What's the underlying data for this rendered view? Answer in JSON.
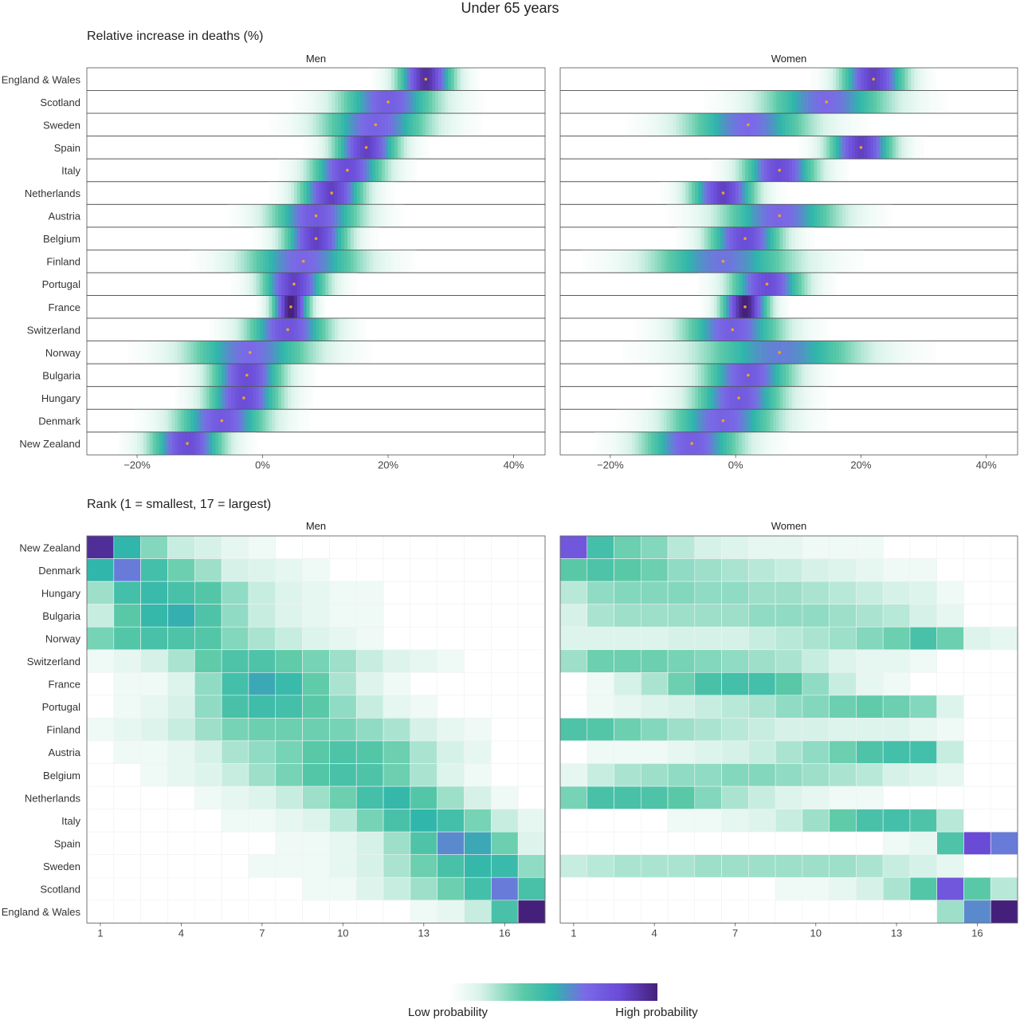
{
  "title": "Under 65 years",
  "top_section_title": "Relative increase in deaths (%)",
  "bottom_section_title": "Rank (1 = smallest, 17 = largest)",
  "legend": {
    "low_label": "Low probability",
    "high_label": "High probability",
    "colors": [
      "#ffffff",
      "#d6f2e8",
      "#5ccaa7",
      "#2fb5ab",
      "#7a6ae6",
      "#6a4bd6",
      "#44207a"
    ]
  },
  "chart_data": [
    {
      "type": "heatmap",
      "subtype": "density-strip",
      "panel": "Men",
      "xlim": [
        -28,
        45
      ],
      "xticks": [
        -20,
        0,
        20,
        40
      ],
      "xtick_labels": [
        "−20%",
        "0%",
        "20%",
        "40%"
      ],
      "point_color": "#f0a030",
      "rows": [
        {
          "country": "England & Wales",
          "estimate": 26,
          "sd": 3
        },
        {
          "country": "Scotland",
          "estimate": 20,
          "sd": 5.5
        },
        {
          "country": "Sweden",
          "estimate": 18,
          "sd": 6
        },
        {
          "country": "Spain",
          "estimate": 16.5,
          "sd": 3.5
        },
        {
          "country": "Italy",
          "estimate": 13.5,
          "sd": 4
        },
        {
          "country": "Netherlands",
          "estimate": 11,
          "sd": 3.5
        },
        {
          "country": "Austria",
          "estimate": 8.5,
          "sd": 5
        },
        {
          "country": "Belgium",
          "estimate": 8.5,
          "sd": 3.5
        },
        {
          "country": "Finland",
          "estimate": 6.5,
          "sd": 6.5
        },
        {
          "country": "Portugal",
          "estimate": 5,
          "sd": 3.5
        },
        {
          "country": "France",
          "estimate": 4.5,
          "sd": 2
        },
        {
          "country": "Switzerland",
          "estimate": 4,
          "sd": 4.5
        },
        {
          "country": "Norway",
          "estimate": -2,
          "sd": 7
        },
        {
          "country": "Bulgaria",
          "estimate": -2.5,
          "sd": 4
        },
        {
          "country": "Hungary",
          "estimate": -3,
          "sd": 4
        },
        {
          "country": "Denmark",
          "estimate": -6.5,
          "sd": 5
        },
        {
          "country": "New Zealand",
          "estimate": -12,
          "sd": 4
        }
      ]
    },
    {
      "type": "heatmap",
      "subtype": "density-strip",
      "panel": "Women",
      "xlim": [
        -28,
        45
      ],
      "xticks": [
        -20,
        0,
        20,
        40
      ],
      "xtick_labels": [
        "−20%",
        "0%",
        "20%",
        "40%"
      ],
      "point_color": "#f0a030",
      "rows": [
        {
          "country": "England & Wales",
          "estimate": 22,
          "sd": 3.5
        },
        {
          "country": "Scotland",
          "estimate": 14.5,
          "sd": 7
        },
        {
          "country": "Sweden",
          "estimate": 2,
          "sd": 7
        },
        {
          "country": "Spain",
          "estimate": 20,
          "sd": 3.5
        },
        {
          "country": "Italy",
          "estimate": 7,
          "sd": 4
        },
        {
          "country": "Netherlands",
          "estimate": -2,
          "sd": 3.5
        },
        {
          "country": "Austria",
          "estimate": 7,
          "sd": 6.5
        },
        {
          "country": "Belgium",
          "estimate": 1.5,
          "sd": 4
        },
        {
          "country": "Finland",
          "estimate": -2,
          "sd": 8
        },
        {
          "country": "Portugal",
          "estimate": 5,
          "sd": 4
        },
        {
          "country": "France",
          "estimate": 1.5,
          "sd": 2.5
        },
        {
          "country": "Switzerland",
          "estimate": -0.5,
          "sd": 5.5
        },
        {
          "country": "Norway",
          "estimate": 7,
          "sd": 9
        },
        {
          "country": "Bulgaria",
          "estimate": 2,
          "sd": 5
        },
        {
          "country": "Hungary",
          "estimate": 0.5,
          "sd": 5
        },
        {
          "country": "Denmark",
          "estimate": -2,
          "sd": 6
        },
        {
          "country": "New Zealand",
          "estimate": -7,
          "sd": 5.5
        }
      ]
    },
    {
      "type": "heatmap",
      "panel": "Men",
      "x_categories": [
        1,
        2,
        3,
        4,
        5,
        6,
        7,
        8,
        9,
        10,
        11,
        12,
        13,
        14,
        15,
        16,
        17
      ],
      "xticks": [
        1,
        4,
        7,
        10,
        13,
        16
      ],
      "rows": [
        {
          "country": "New Zealand",
          "values": [
            0.55,
            0.22,
            0.1,
            0.05,
            0.04,
            0.02,
            0.01,
            0,
            0,
            0,
            0,
            0,
            0,
            0,
            0,
            0,
            0
          ]
        },
        {
          "country": "Denmark",
          "values": [
            0.22,
            0.3,
            0.18,
            0.12,
            0.08,
            0.04,
            0.03,
            0.02,
            0.01,
            0,
            0,
            0,
            0,
            0,
            0,
            0,
            0
          ]
        },
        {
          "country": "Hungary",
          "values": [
            0.08,
            0.18,
            0.2,
            0.17,
            0.15,
            0.09,
            0.05,
            0.03,
            0.02,
            0.01,
            0.01,
            0,
            0,
            0,
            0,
            0,
            0
          ]
        },
        {
          "country": "Bulgaria",
          "values": [
            0.05,
            0.14,
            0.21,
            0.23,
            0.16,
            0.09,
            0.05,
            0.03,
            0.02,
            0.01,
            0.01,
            0,
            0,
            0,
            0,
            0,
            0
          ]
        },
        {
          "country": "Norway",
          "values": [
            0.11,
            0.15,
            0.17,
            0.16,
            0.15,
            0.1,
            0.07,
            0.05,
            0.03,
            0.02,
            0.01,
            0,
            0,
            0,
            0,
            0,
            0
          ]
        },
        {
          "country": "Switzerland",
          "values": [
            0.01,
            0.02,
            0.04,
            0.07,
            0.13,
            0.16,
            0.16,
            0.13,
            0.11,
            0.08,
            0.05,
            0.03,
            0.02,
            0.01,
            0,
            0,
            0
          ]
        },
        {
          "country": "France",
          "values": [
            0,
            0.01,
            0.01,
            0.03,
            0.09,
            0.18,
            0.24,
            0.2,
            0.13,
            0.07,
            0.03,
            0.01,
            0,
            0,
            0,
            0,
            0
          ]
        },
        {
          "country": "Portugal",
          "values": [
            0,
            0.01,
            0.02,
            0.04,
            0.09,
            0.17,
            0.19,
            0.18,
            0.14,
            0.09,
            0.05,
            0.02,
            0.01,
            0,
            0,
            0,
            0
          ]
        },
        {
          "country": "Finland",
          "values": [
            0.01,
            0.02,
            0.03,
            0.05,
            0.08,
            0.11,
            0.12,
            0.12,
            0.12,
            0.11,
            0.09,
            0.07,
            0.04,
            0.02,
            0.01,
            0,
            0
          ]
        },
        {
          "country": "Austria",
          "values": [
            0,
            0.01,
            0.01,
            0.02,
            0.04,
            0.07,
            0.09,
            0.11,
            0.14,
            0.16,
            0.15,
            0.12,
            0.07,
            0.04,
            0.02,
            0,
            0
          ]
        },
        {
          "country": "Belgium",
          "values": [
            0,
            0,
            0.01,
            0.02,
            0.03,
            0.05,
            0.08,
            0.11,
            0.15,
            0.17,
            0.16,
            0.12,
            0.07,
            0.03,
            0.01,
            0,
            0
          ]
        },
        {
          "country": "Netherlands",
          "values": [
            0,
            0,
            0,
            0,
            0.01,
            0.02,
            0.03,
            0.05,
            0.08,
            0.12,
            0.18,
            0.21,
            0.15,
            0.08,
            0.04,
            0.01,
            0
          ]
        },
        {
          "country": "Italy",
          "values": [
            0,
            0,
            0,
            0,
            0,
            0.01,
            0.01,
            0.02,
            0.03,
            0.06,
            0.11,
            0.17,
            0.22,
            0.18,
            0.11,
            0.05,
            0.02
          ]
        },
        {
          "country": "Spain",
          "values": [
            0,
            0,
            0,
            0,
            0,
            0,
            0,
            0.01,
            0.01,
            0.02,
            0.04,
            0.08,
            0.16,
            0.28,
            0.24,
            0.12,
            0.03
          ]
        },
        {
          "country": "Sweden",
          "values": [
            0,
            0,
            0,
            0,
            0,
            0,
            0.01,
            0.01,
            0.01,
            0.02,
            0.04,
            0.07,
            0.12,
            0.17,
            0.21,
            0.2,
            0.09
          ]
        },
        {
          "country": "Scotland",
          "values": [
            0,
            0,
            0,
            0,
            0,
            0,
            0,
            0,
            0.01,
            0.01,
            0.03,
            0.05,
            0.08,
            0.12,
            0.18,
            0.3,
            0.17
          ]
        },
        {
          "country": "England & Wales",
          "values": [
            0,
            0,
            0,
            0,
            0,
            0,
            0,
            0,
            0,
            0,
            0,
            0,
            0.01,
            0.02,
            0.05,
            0.17,
            0.6
          ]
        }
      ]
    },
    {
      "type": "heatmap",
      "panel": "Women",
      "x_categories": [
        1,
        2,
        3,
        4,
        5,
        6,
        7,
        8,
        9,
        10,
        11,
        12,
        13,
        14,
        15,
        16,
        17
      ],
      "xticks": [
        1,
        4,
        7,
        10,
        13,
        16
      ],
      "rows": [
        {
          "country": "New Zealand",
          "values": [
            0.4,
            0.18,
            0.12,
            0.1,
            0.06,
            0.04,
            0.03,
            0.02,
            0.02,
            0.01,
            0.01,
            0.01,
            0,
            0,
            0,
            0,
            0
          ]
        },
        {
          "country": "Denmark",
          "values": [
            0.14,
            0.16,
            0.14,
            0.12,
            0.09,
            0.08,
            0.07,
            0.06,
            0.05,
            0.04,
            0.03,
            0.02,
            0.01,
            0.01,
            0,
            0,
            0
          ]
        },
        {
          "country": "Hungary",
          "values": [
            0.06,
            0.09,
            0.1,
            0.1,
            0.1,
            0.09,
            0.09,
            0.08,
            0.08,
            0.07,
            0.06,
            0.05,
            0.04,
            0.03,
            0.01,
            0,
            0
          ]
        },
        {
          "country": "Bulgaria",
          "values": [
            0.04,
            0.07,
            0.08,
            0.08,
            0.08,
            0.08,
            0.08,
            0.09,
            0.09,
            0.09,
            0.08,
            0.07,
            0.06,
            0.04,
            0.02,
            0,
            0
          ]
        },
        {
          "country": "Norway",
          "values": [
            0.03,
            0.03,
            0.03,
            0.03,
            0.04,
            0.04,
            0.04,
            0.05,
            0.06,
            0.07,
            0.08,
            0.1,
            0.12,
            0.17,
            0.12,
            0.03,
            0.02
          ]
        },
        {
          "country": "Switzerland",
          "values": [
            0.08,
            0.12,
            0.12,
            0.12,
            0.11,
            0.1,
            0.09,
            0.08,
            0.07,
            0.05,
            0.03,
            0.02,
            0.02,
            0.01,
            0,
            0,
            0
          ]
        },
        {
          "country": "France",
          "values": [
            0,
            0.01,
            0.04,
            0.07,
            0.12,
            0.17,
            0.18,
            0.18,
            0.14,
            0.09,
            0.05,
            0.02,
            0.01,
            0,
            0,
            0,
            0
          ]
        },
        {
          "country": "Portugal",
          "values": [
            0,
            0.01,
            0.02,
            0.03,
            0.04,
            0.05,
            0.06,
            0.07,
            0.09,
            0.1,
            0.12,
            0.13,
            0.12,
            0.1,
            0.03,
            0,
            0
          ]
        },
        {
          "country": "Finland",
          "values": [
            0.16,
            0.15,
            0.12,
            0.1,
            0.08,
            0.07,
            0.06,
            0.05,
            0.04,
            0.04,
            0.03,
            0.03,
            0.03,
            0.02,
            0.01,
            0,
            0
          ]
        },
        {
          "country": "Austria",
          "values": [
            0,
            0.01,
            0.01,
            0.01,
            0.02,
            0.03,
            0.04,
            0.05,
            0.07,
            0.09,
            0.12,
            0.16,
            0.18,
            0.18,
            0.05,
            0,
            0
          ]
        },
        {
          "country": "Belgium",
          "values": [
            0.02,
            0.05,
            0.07,
            0.08,
            0.09,
            0.09,
            0.1,
            0.1,
            0.09,
            0.08,
            0.07,
            0.06,
            0.04,
            0.03,
            0.02,
            0,
            0
          ]
        },
        {
          "country": "Netherlands",
          "values": [
            0.11,
            0.17,
            0.17,
            0.16,
            0.14,
            0.1,
            0.07,
            0.05,
            0.03,
            0.02,
            0.01,
            0.01,
            0,
            0,
            0,
            0,
            0
          ]
        },
        {
          "country": "Italy",
          "values": [
            0,
            0,
            0,
            0,
            0.01,
            0.01,
            0.02,
            0.03,
            0.05,
            0.08,
            0.13,
            0.17,
            0.18,
            0.16,
            0.06,
            0,
            0
          ]
        },
        {
          "country": "Spain",
          "values": [
            0,
            0,
            0,
            0,
            0,
            0,
            0,
            0,
            0,
            0,
            0,
            0,
            0.01,
            0.02,
            0.16,
            0.45,
            0.3
          ]
        },
        {
          "country": "Sweden",
          "values": [
            0.05,
            0.06,
            0.07,
            0.07,
            0.07,
            0.08,
            0.08,
            0.08,
            0.08,
            0.08,
            0.08,
            0.07,
            0.05,
            0.04,
            0.02,
            0,
            0
          ]
        },
        {
          "country": "Scotland",
          "values": [
            0,
            0,
            0,
            0,
            0,
            0,
            0,
            0,
            0.01,
            0.01,
            0.02,
            0.04,
            0.07,
            0.15,
            0.4,
            0.14,
            0.06
          ]
        },
        {
          "country": "England & Wales",
          "values": [
            0,
            0,
            0,
            0,
            0,
            0,
            0,
            0,
            0,
            0,
            0,
            0,
            0,
            0,
            0.08,
            0.28,
            0.6
          ]
        }
      ]
    }
  ]
}
